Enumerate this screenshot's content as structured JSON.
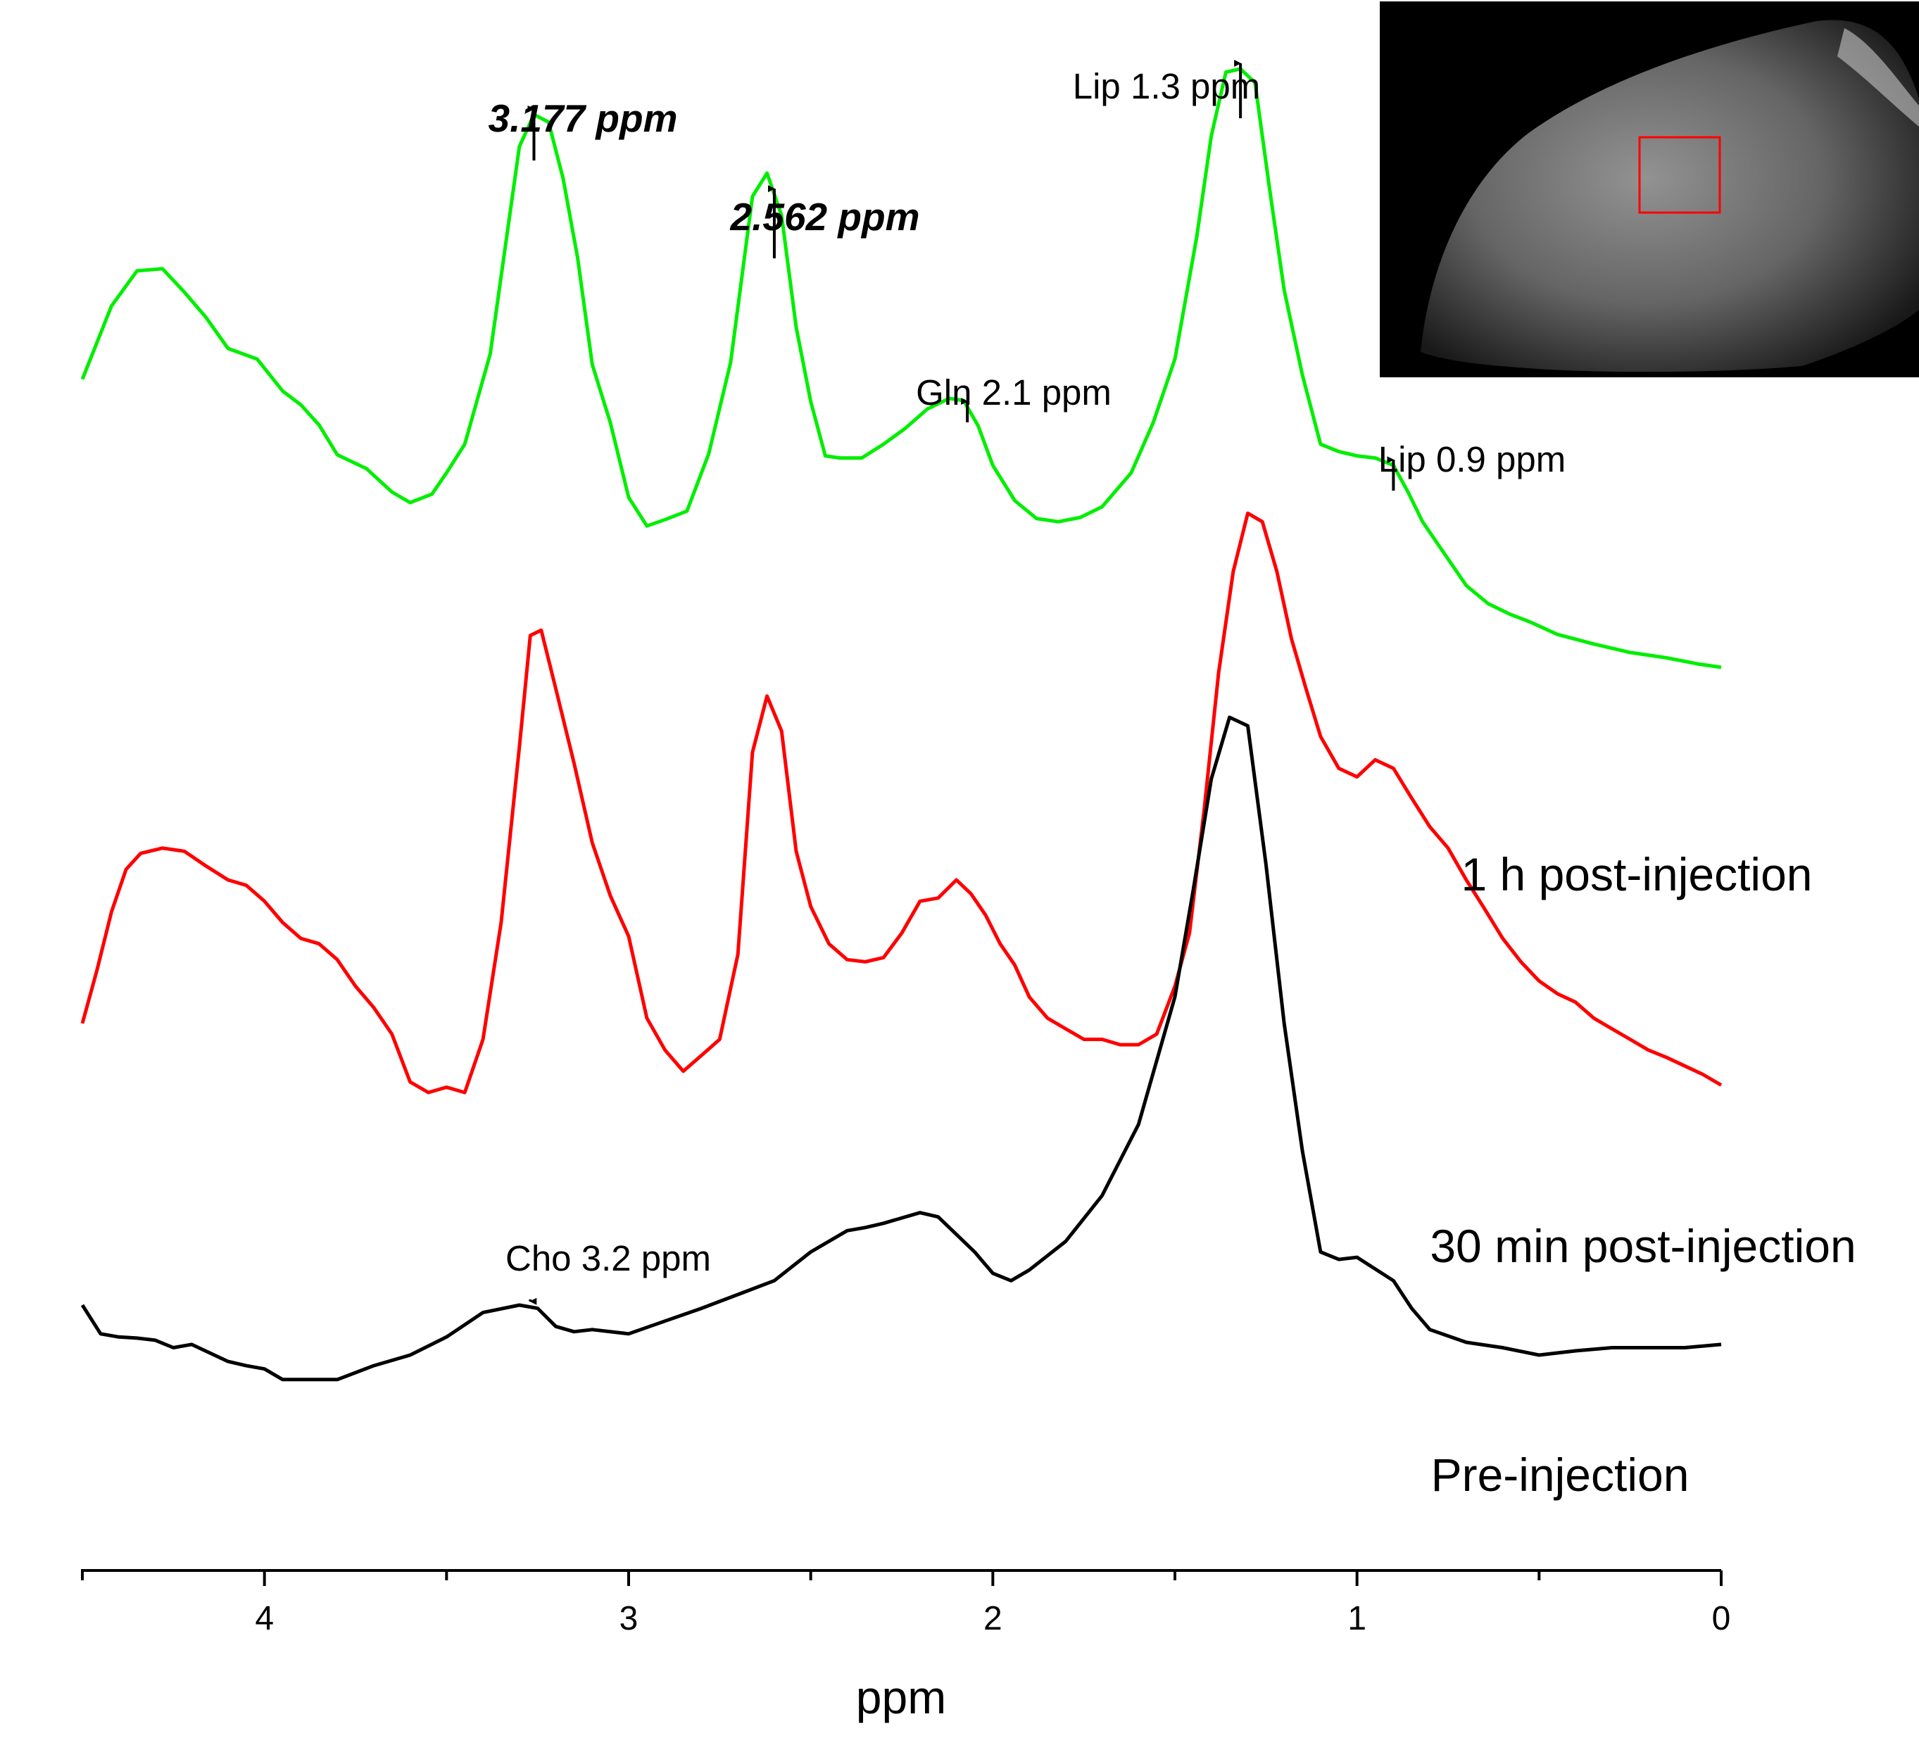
{
  "chart_data": {
    "type": "line",
    "title": "",
    "xlabel": "ppm",
    "ylabel": "",
    "xlim": [
      4.5,
      0
    ],
    "x_reversed": true,
    "xticks_major": [
      4,
      3,
      2,
      1,
      0
    ],
    "xtick_labels": [
      "4",
      "3",
      "2",
      "1",
      "0"
    ],
    "xticks_minor": [
      4.5,
      3.5,
      2.5,
      1.5,
      0.5
    ],
    "grid": false,
    "legend": "none",
    "series": [
      {
        "name": "1 h post-injection",
        "color": "#00ee00",
        "x": [
          4.5,
          4.42,
          4.35,
          4.28,
          4.22,
          4.16,
          4.1,
          4.02,
          3.95,
          3.9,
          3.85,
          3.8,
          3.72,
          3.65,
          3.6,
          3.54,
          3.5,
          3.45,
          3.38,
          3.3,
          3.26,
          3.22,
          3.18,
          3.14,
          3.1,
          3.05,
          3.0,
          2.95,
          2.9,
          2.84,
          2.78,
          2.72,
          2.66,
          2.62,
          2.58,
          2.54,
          2.5,
          2.46,
          2.42,
          2.36,
          2.3,
          2.24,
          2.18,
          2.12,
          2.08,
          2.04,
          2.0,
          1.94,
          1.88,
          1.82,
          1.76,
          1.7,
          1.62,
          1.56,
          1.5,
          1.44,
          1.4,
          1.36,
          1.32,
          1.28,
          1.24,
          1.2,
          1.15,
          1.1,
          1.05,
          1.0,
          0.95,
          0.9,
          0.86,
          0.82,
          0.76,
          0.7,
          0.64,
          0.58,
          0.52,
          0.45,
          0.35,
          0.25,
          0.15,
          0.06,
          0.0
        ],
        "y": [
          2.16,
          2.85,
          3.18,
          3.2,
          2.98,
          2.74,
          2.45,
          2.35,
          2.05,
          1.92,
          1.73,
          1.45,
          1.32,
          1.1,
          1.0,
          1.08,
          1.28,
          1.55,
          2.4,
          4.35,
          4.65,
          4.58,
          4.05,
          3.3,
          2.3,
          1.75,
          1.05,
          0.78,
          0.84,
          0.92,
          1.46,
          2.32,
          3.88,
          4.1,
          3.7,
          2.65,
          1.95,
          1.44,
          1.42,
          1.42,
          1.55,
          1.7,
          1.88,
          1.98,
          1.96,
          1.72,
          1.35,
          1.02,
          0.85,
          0.82,
          0.86,
          0.96,
          1.28,
          1.75,
          2.35,
          3.5,
          4.45,
          5.05,
          5.08,
          4.95,
          3.95,
          3.0,
          2.2,
          1.55,
          1.48,
          1.44,
          1.42,
          1.35,
          1.1,
          0.82,
          0.52,
          0.22,
          0.05,
          -0.05,
          -0.13,
          -0.24,
          -0.33,
          -0.41,
          -0.46,
          -0.52,
          -0.55
        ]
      },
      {
        "name": "30 min post-injection",
        "color": "#ff0000",
        "x": [
          4.5,
          4.46,
          4.42,
          4.38,
          4.34,
          4.28,
          4.22,
          4.16,
          4.1,
          4.05,
          4.0,
          3.95,
          3.9,
          3.85,
          3.8,
          3.75,
          3.7,
          3.65,
          3.6,
          3.55,
          3.5,
          3.45,
          3.4,
          3.35,
          3.3,
          3.27,
          3.24,
          3.2,
          3.15,
          3.1,
          3.05,
          3.0,
          2.95,
          2.9,
          2.85,
          2.8,
          2.75,
          2.7,
          2.66,
          2.62,
          2.58,
          2.54,
          2.5,
          2.45,
          2.4,
          2.35,
          2.3,
          2.25,
          2.2,
          2.15,
          2.1,
          2.06,
          2.02,
          1.98,
          1.94,
          1.9,
          1.85,
          1.8,
          1.75,
          1.7,
          1.65,
          1.6,
          1.55,
          1.5,
          1.46,
          1.42,
          1.38,
          1.34,
          1.3,
          1.26,
          1.22,
          1.18,
          1.14,
          1.1,
          1.05,
          1.0,
          0.95,
          0.9,
          0.85,
          0.8,
          0.75,
          0.7,
          0.65,
          0.6,
          0.55,
          0.5,
          0.45,
          0.4,
          0.35,
          0.3,
          0.25,
          0.2,
          0.15,
          0.1,
          0.05,
          0.0
        ],
        "y": [
          -3.9,
          -3.4,
          -2.85,
          -2.45,
          -2.3,
          -2.25,
          -2.28,
          -2.42,
          -2.55,
          -2.6,
          -2.75,
          -2.95,
          -3.1,
          -3.15,
          -3.3,
          -3.55,
          -3.75,
          -4.0,
          -4.45,
          -4.55,
          -4.5,
          -4.55,
          -4.05,
          -2.95,
          -1.3,
          -0.25,
          -0.2,
          -0.75,
          -1.45,
          -2.2,
          -2.7,
          -3.08,
          -3.85,
          -4.15,
          -4.35,
          -4.2,
          -4.05,
          -3.25,
          -1.35,
          -0.82,
          -1.15,
          -2.28,
          -2.8,
          -3.15,
          -3.3,
          -3.32,
          -3.28,
          -3.05,
          -2.75,
          -2.72,
          -2.55,
          -2.68,
          -2.88,
          -3.15,
          -3.35,
          -3.65,
          -3.85,
          -3.95,
          -4.05,
          -4.05,
          -4.1,
          -4.1,
          -4.0,
          -3.55,
          -3.05,
          -1.9,
          -0.6,
          0.35,
          0.9,
          0.82,
          0.35,
          -0.28,
          -0.75,
          -1.2,
          -1.5,
          -1.58,
          -1.42,
          -1.5,
          -1.78,
          -2.05,
          -2.25,
          -2.55,
          -2.82,
          -3.1,
          -3.32,
          -3.5,
          -3.62,
          -3.7,
          -3.85,
          -3.95,
          -4.05,
          -4.15,
          -4.22,
          -4.3,
          -4.38,
          -4.48
        ]
      },
      {
        "name": "Pre-injection",
        "color": "#000000",
        "x": [
          4.5,
          4.45,
          4.4,
          4.35,
          4.3,
          4.25,
          4.2,
          4.15,
          4.1,
          4.05,
          4.0,
          3.95,
          3.9,
          3.8,
          3.7,
          3.6,
          3.5,
          3.4,
          3.3,
          3.25,
          3.2,
          3.15,
          3.1,
          3.0,
          2.9,
          2.8,
          2.7,
          2.6,
          2.5,
          2.4,
          2.35,
          2.3,
          2.2,
          2.15,
          2.05,
          2.0,
          1.95,
          1.9,
          1.8,
          1.7,
          1.6,
          1.5,
          1.45,
          1.4,
          1.35,
          1.3,
          1.25,
          1.2,
          1.15,
          1.1,
          1.05,
          1.0,
          0.9,
          0.85,
          0.8,
          0.7,
          0.6,
          0.5,
          0.4,
          0.3,
          0.2,
          0.1,
          0.0
        ],
        "y": [
          -6.55,
          -6.82,
          -6.85,
          -6.86,
          -6.88,
          -6.95,
          -6.92,
          -7.0,
          -7.08,
          -7.12,
          -7.15,
          -7.25,
          -7.25,
          -7.25,
          -7.12,
          -7.02,
          -6.85,
          -6.62,
          -6.55,
          -6.58,
          -6.75,
          -6.8,
          -6.78,
          -6.82,
          -6.7,
          -6.58,
          -6.45,
          -6.32,
          -6.05,
          -5.85,
          -5.82,
          -5.78,
          -5.68,
          -5.72,
          -6.05,
          -6.25,
          -6.32,
          -6.22,
          -5.95,
          -5.52,
          -4.85,
          -3.65,
          -2.65,
          -1.6,
          -1.02,
          -1.1,
          -2.4,
          -3.9,
          -5.1,
          -6.05,
          -6.12,
          -6.1,
          -6.32,
          -6.58,
          -6.78,
          -6.9,
          -6.95,
          -7.02,
          -6.98,
          -6.95,
          -6.95,
          -6.95,
          -6.92
        ]
      }
    ],
    "series_labels": [
      "1 h post-injection",
      "30 min post-injection",
      "Pre-injection"
    ],
    "annotations": [
      {
        "text": "3.177 ppm",
        "x": 3.26,
        "series": "1 h post-injection",
        "style": "bold-italic"
      },
      {
        "text": "2.562 ppm",
        "x": 2.6,
        "series": "1 h post-injection",
        "style": "bold-italic"
      },
      {
        "text": "Gln 2.1 ppm",
        "x": 2.07,
        "series": "1 h post-injection",
        "style": "normal"
      },
      {
        "text": "Lip 1.3 ppm",
        "x": 1.32,
        "series": "1 h post-injection",
        "style": "normal"
      },
      {
        "text": "Lip 0.9 ppm",
        "x": 0.9,
        "series": "1 h post-injection",
        "style": "normal"
      },
      {
        "text": "Cho 3.2 ppm",
        "x": 3.27,
        "series": "Pre-injection",
        "style": "normal"
      }
    ],
    "inset": {
      "description": "grayscale MR image with red ROI box",
      "roi_color": "#ff0000"
    }
  }
}
